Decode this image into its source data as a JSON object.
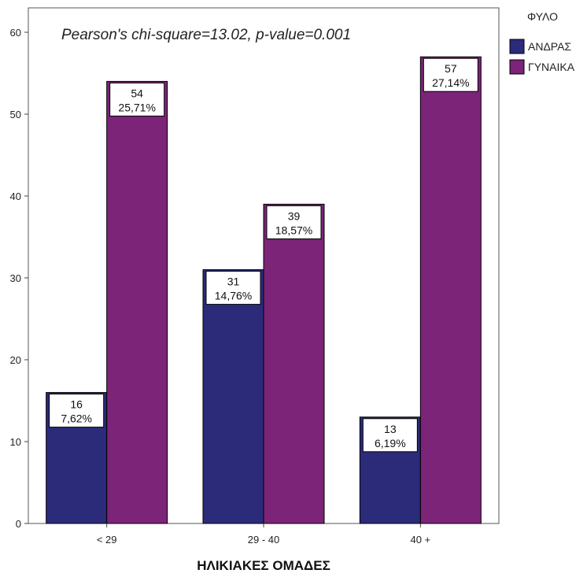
{
  "chart_data": {
    "type": "bar",
    "annotation": "Pearson's chi-square=13.02, p-value=0.001",
    "xlabel": "ΗΛΙΚΙΑΚΕΣ ΟΜΑΔΕΣ",
    "ylabel": "",
    "categories": [
      "< 29",
      "29 - 40",
      "40 +"
    ],
    "ylim": [
      0,
      60
    ],
    "yticks": [
      0,
      10,
      20,
      30,
      40,
      50,
      60
    ],
    "legend": {
      "title": "ΦΥΛΟ",
      "placement": "right"
    },
    "series": [
      {
        "name": "ΑΝΔΡΑΣ",
        "color": "#2b2b7a",
        "values": [
          16,
          31,
          13
        ],
        "labels": [
          "7,62%",
          "14,76%",
          "6,19%"
        ]
      },
      {
        "name": "ΓΥΝΑΙΚΑ",
        "color": "#7b2478",
        "values": [
          54,
          39,
          57
        ],
        "labels": [
          "25,71%",
          "18,57%",
          "27,14%"
        ]
      }
    ]
  }
}
